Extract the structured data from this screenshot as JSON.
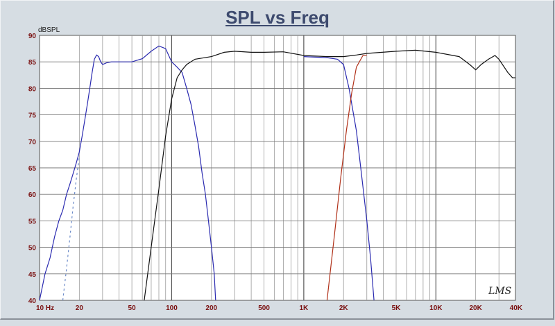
{
  "chart_data": {
    "type": "line",
    "title": "SPL vs Freq",
    "ylabel": "dBSPL",
    "xlabel": "",
    "xscale": "log",
    "xlim": [
      10,
      40000
    ],
    "ylim": [
      40,
      90
    ],
    "grid": true,
    "watermark": "LMS",
    "x_tick_labels": [
      {
        "v": 10,
        "t": "10 Hz"
      },
      {
        "v": 20,
        "t": "20"
      },
      {
        "v": 50,
        "t": "50"
      },
      {
        "v": 100,
        "t": "100"
      },
      {
        "v": 200,
        "t": "200"
      },
      {
        "v": 500,
        "t": "500"
      },
      {
        "v": 1000,
        "t": "1K"
      },
      {
        "v": 2000,
        "t": "2K"
      },
      {
        "v": 5000,
        "t": "5K"
      },
      {
        "v": 10000,
        "t": "10K"
      },
      {
        "v": 20000,
        "t": "20K"
      },
      {
        "v": 40000,
        "t": "40K"
      }
    ],
    "y_ticks": [
      40,
      45,
      50,
      55,
      60,
      65,
      70,
      75,
      80,
      85,
      90
    ],
    "series": [
      {
        "color": "#2a2ab0",
        "points": [
          [
            10,
            40
          ],
          [
            11,
            45
          ],
          [
            12,
            48
          ],
          [
            13,
            52
          ],
          [
            14,
            55
          ],
          [
            15,
            57
          ],
          [
            16,
            60
          ],
          [
            17,
            62
          ],
          [
            18,
            64
          ],
          [
            19,
            66
          ],
          [
            20,
            68
          ],
          [
            21,
            71
          ],
          [
            22,
            74
          ],
          [
            23,
            77
          ],
          [
            24,
            80
          ],
          [
            25,
            83
          ],
          [
            26,
            85.5
          ],
          [
            27,
            86.3
          ],
          [
            28,
            86
          ],
          [
            29,
            85
          ],
          [
            30,
            84.5
          ],
          [
            32,
            84.8
          ],
          [
            35,
            85
          ],
          [
            40,
            85
          ],
          [
            50,
            85
          ],
          [
            60,
            85.6
          ],
          [
            70,
            87
          ],
          [
            80,
            88
          ],
          [
            90,
            87.5
          ],
          [
            100,
            85
          ],
          [
            110,
            84
          ],
          [
            120,
            83
          ],
          [
            130,
            80
          ],
          [
            140,
            77
          ],
          [
            150,
            73
          ],
          [
            160,
            69
          ],
          [
            170,
            64
          ],
          [
            180,
            60
          ],
          [
            190,
            55
          ],
          [
            200,
            50
          ],
          [
            210,
            45
          ],
          [
            215,
            40
          ]
        ]
      },
      {
        "color": "#111111",
        "points": [
          [
            62,
            40
          ],
          [
            70,
            50
          ],
          [
            80,
            61
          ],
          [
            90,
            71
          ],
          [
            100,
            78
          ],
          [
            110,
            82
          ],
          [
            120,
            83.5
          ],
          [
            130,
            84.5
          ],
          [
            150,
            85.5
          ],
          [
            200,
            86
          ],
          [
            250,
            86.8
          ],
          [
            300,
            87
          ],
          [
            400,
            86.8
          ],
          [
            500,
            86.8
          ],
          [
            700,
            86.9
          ],
          [
            1000,
            86.2
          ],
          [
            1500,
            86
          ],
          [
            2000,
            86
          ],
          [
            2500,
            86.3
          ],
          [
            3000,
            86.6
          ],
          [
            5000,
            87
          ],
          [
            7000,
            87.2
          ],
          [
            10000,
            86.8
          ],
          [
            15000,
            86
          ],
          [
            18000,
            84.5
          ],
          [
            20000,
            83.5
          ],
          [
            22000,
            84.5
          ],
          [
            25000,
            85.5
          ],
          [
            28000,
            86.2
          ],
          [
            30000,
            85.5
          ],
          [
            35000,
            83
          ],
          [
            38000,
            82
          ],
          [
            40000,
            82
          ]
        ]
      },
      {
        "color": "#2a2ab0",
        "points": [
          [
            1000,
            86
          ],
          [
            1500,
            85.8
          ],
          [
            1800,
            85.5
          ],
          [
            2000,
            84.5
          ],
          [
            2200,
            80
          ],
          [
            2500,
            72
          ],
          [
            2700,
            65
          ],
          [
            3000,
            55
          ],
          [
            3200,
            48
          ],
          [
            3400,
            40
          ]
        ]
      },
      {
        "color": "#b03018",
        "points": [
          [
            1500,
            40
          ],
          [
            1700,
            52
          ],
          [
            1900,
            63
          ],
          [
            2100,
            72
          ],
          [
            2300,
            79
          ],
          [
            2500,
            84
          ],
          [
            2800,
            86.2
          ],
          [
            3000,
            86.3
          ]
        ]
      },
      {
        "color": "#6a8ac8",
        "points": [
          [
            15,
            40
          ],
          [
            16,
            46
          ],
          [
            17,
            52
          ],
          [
            18,
            58
          ],
          [
            19,
            63
          ],
          [
            20,
            67
          ]
        ]
      }
    ]
  }
}
